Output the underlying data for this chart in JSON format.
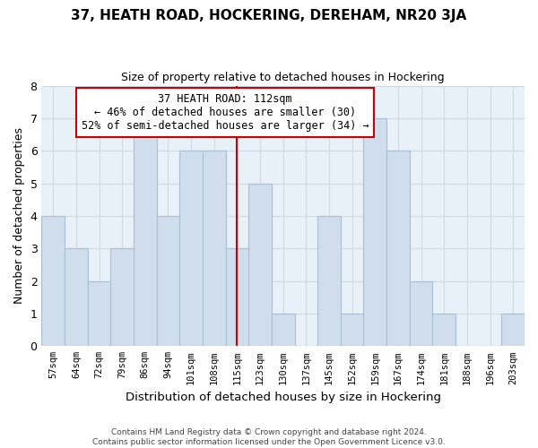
{
  "title": "37, HEATH ROAD, HOCKERING, DEREHAM, NR20 3JA",
  "subtitle": "Size of property relative to detached houses in Hockering",
  "xlabel": "Distribution of detached houses by size in Hockering",
  "ylabel": "Number of detached properties",
  "footer_lines": [
    "Contains HM Land Registry data © Crown copyright and database right 2024.",
    "Contains public sector information licensed under the Open Government Licence v3.0."
  ],
  "bin_labels": [
    "57sqm",
    "64sqm",
    "72sqm",
    "79sqm",
    "86sqm",
    "94sqm",
    "101sqm",
    "108sqm",
    "115sqm",
    "123sqm",
    "130sqm",
    "137sqm",
    "145sqm",
    "152sqm",
    "159sqm",
    "167sqm",
    "174sqm",
    "181sqm",
    "188sqm",
    "196sqm",
    "203sqm"
  ],
  "bar_heights": [
    4,
    3,
    2,
    3,
    7,
    4,
    6,
    6,
    3,
    5,
    1,
    0,
    4,
    1,
    7,
    6,
    2,
    1,
    0,
    0,
    1
  ],
  "bar_color": "#cfdded",
  "bar_edge_color": "#a8c0d6",
  "plot_bg_color": "#e8f0f8",
  "reference_line_x_label": "115sqm",
  "reference_line_color": "#cc0000",
  "annotation_title": "37 HEATH ROAD: 112sqm",
  "annotation_line1": "← 46% of detached houses are smaller (30)",
  "annotation_line2": "52% of semi-detached houses are larger (34) →",
  "annotation_box_edge_color": "#cc0000",
  "annotation_box_face_color": "#ffffff",
  "ylim": [
    0,
    8
  ],
  "yticks": [
    0,
    1,
    2,
    3,
    4,
    5,
    6,
    7,
    8
  ],
  "grid_color": "#d0d8e4",
  "title_fontsize": 11,
  "subtitle_fontsize": 9
}
